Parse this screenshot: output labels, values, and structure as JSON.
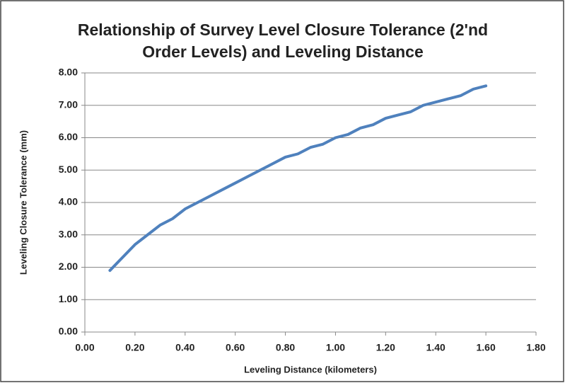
{
  "chart_data": {
    "type": "line",
    "title": [
      "Relationship of Survey Level Closure Tolerance (2'nd",
      "Order Levels) and Leveling Distance"
    ],
    "xlabel": "Leveling Distance (kilometers)",
    "ylabel": "Leveling Closure Tolerance (mm)",
    "x": [
      0.1,
      0.15,
      0.2,
      0.25,
      0.3,
      0.35,
      0.4,
      0.45,
      0.5,
      0.55,
      0.6,
      0.65,
      0.7,
      0.75,
      0.8,
      0.85,
      0.9,
      0.95,
      1.0,
      1.05,
      1.1,
      1.15,
      1.2,
      1.25,
      1.3,
      1.35,
      1.4,
      1.45,
      1.5,
      1.55,
      1.6
    ],
    "series": [
      {
        "color": "#4f81bd",
        "values": [
          1.9,
          2.3,
          2.7,
          3.0,
          3.3,
          3.5,
          3.8,
          4.0,
          4.2,
          4.4,
          4.6,
          4.8,
          5.0,
          5.2,
          5.4,
          5.5,
          5.7,
          5.8,
          6.0,
          6.1,
          6.3,
          6.4,
          6.6,
          6.7,
          6.8,
          7.0,
          7.1,
          7.2,
          7.3,
          7.5,
          7.6
        ]
      }
    ],
    "xlim": [
      0,
      1.8
    ],
    "xticks": [
      {
        "value": 0,
        "label": "0.00"
      },
      {
        "value": 0.2,
        "label": "0.20"
      },
      {
        "value": 0.4,
        "label": "0.40"
      },
      {
        "value": 0.6,
        "label": "0.60"
      },
      {
        "value": 0.8,
        "label": "0.80"
      },
      {
        "value": 1.0,
        "label": "1.00"
      },
      {
        "value": 1.2,
        "label": "1.20"
      },
      {
        "value": 1.4,
        "label": "1.40"
      },
      {
        "value": 1.6,
        "label": "1.60"
      },
      {
        "value": 1.8,
        "label": "1.80"
      }
    ],
    "ylim": [
      0,
      8
    ],
    "yticks": [
      {
        "value": 0,
        "label": "0.00"
      },
      {
        "value": 1,
        "label": "1.00"
      },
      {
        "value": 2,
        "label": "2.00"
      },
      {
        "value": 3,
        "label": "3.00"
      },
      {
        "value": 4,
        "label": "4.00"
      },
      {
        "value": 5,
        "label": "5.00"
      },
      {
        "value": 6,
        "label": "6.00"
      },
      {
        "value": 7,
        "label": "7.00"
      },
      {
        "value": 8,
        "label": "8.00"
      }
    ],
    "grid": true
  }
}
